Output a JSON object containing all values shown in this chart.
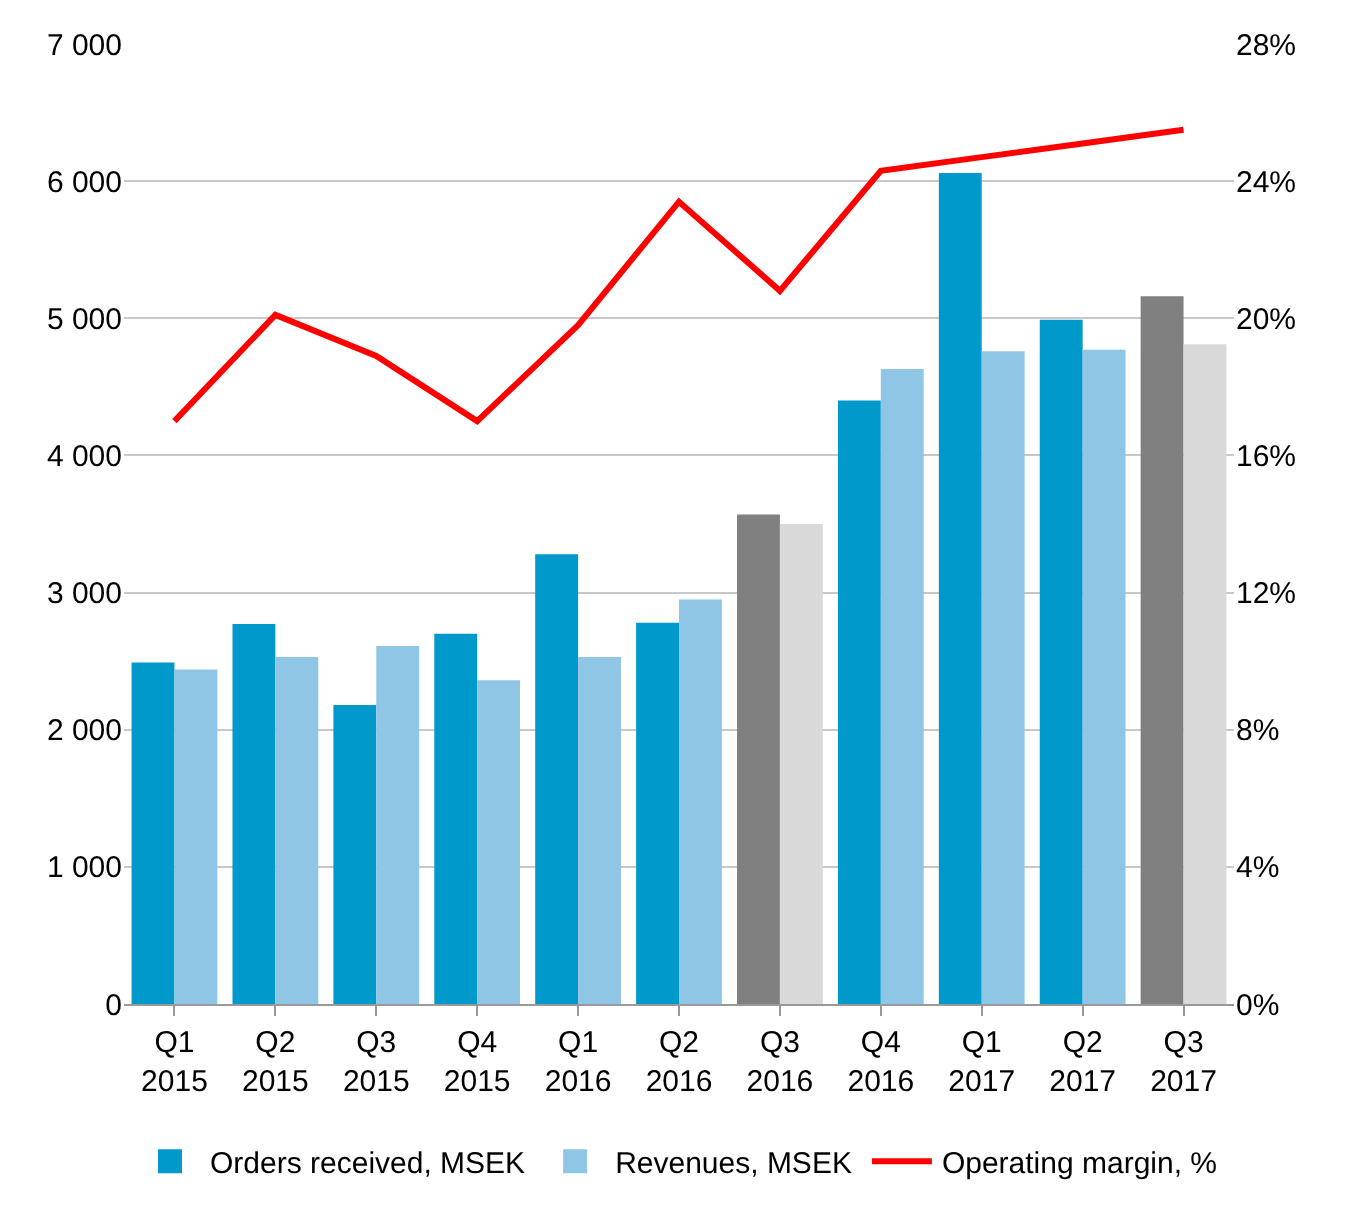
{
  "chart_data": {
    "type": "bar",
    "categories": [
      "Q1\n2015",
      "Q2\n2015",
      "Q3\n2015",
      "Q4\n2015",
      "Q1\n2016",
      "Q2\n2016",
      "Q3\n2016",
      "Q4\n2016",
      "Q1\n2017",
      "Q2\n2017",
      "Q3\n2017"
    ],
    "series": [
      {
        "name": "Orders received, MSEK",
        "color": "#0099cc",
        "colors": [
          "#0099cc",
          "#0099cc",
          "#0099cc",
          "#0099cc",
          "#0099cc",
          "#0099cc",
          "#808080",
          "#0099cc",
          "#0099cc",
          "#0099cc",
          "#808080"
        ],
        "values": [
          2490,
          2770,
          2180,
          2700,
          3280,
          2780,
          3570,
          4400,
          6060,
          4990,
          5160
        ]
      },
      {
        "name": "Revenues, MSEK",
        "color": "#8fc6e6",
        "colors": [
          "#8fc6e6",
          "#8fc6e6",
          "#8fc6e6",
          "#8fc6e6",
          "#8fc6e6",
          "#8fc6e6",
          "#d9d9d9",
          "#8fc6e6",
          "#8fc6e6",
          "#8fc6e6",
          "#d9d9d9"
        ],
        "values": [
          2440,
          2530,
          2610,
          2360,
          2530,
          2950,
          3500,
          4630,
          4760,
          4770,
          4810
        ]
      },
      {
        "name": "Operating margin, %",
        "type": "line",
        "axis": "y2",
        "color": "#ff0000",
        "values": [
          17.0,
          20.1,
          18.9,
          17.0,
          19.8,
          23.4,
          20.8,
          24.3,
          24.7,
          25.1,
          25.5
        ]
      }
    ],
    "ylim": [
      0,
      7000
    ],
    "yticks": [
      {
        "value": 0,
        "label": "0"
      },
      {
        "value": 1000,
        "label": "1 000"
      },
      {
        "value": 2000,
        "label": "2 000"
      },
      {
        "value": 3000,
        "label": "3 000"
      },
      {
        "value": 4000,
        "label": "4 000"
      },
      {
        "value": 5000,
        "label": "5 000"
      },
      {
        "value": 6000,
        "label": "6 000"
      },
      {
        "value": 7000,
        "label": "7 000"
      }
    ],
    "y2lim": [
      0,
      28
    ],
    "y2ticks": [
      {
        "value": 0,
        "label": "0%"
      },
      {
        "value": 4,
        "label": "4%"
      },
      {
        "value": 8,
        "label": "8%"
      },
      {
        "value": 12,
        "label": "12%"
      },
      {
        "value": 16,
        "label": "16%"
      },
      {
        "value": 20,
        "label": "20%"
      },
      {
        "value": 24,
        "label": "24%"
      },
      {
        "value": 28,
        "label": "28%"
      }
    ],
    "grid": "y",
    "legend": "bottom",
    "marker": "none",
    "line_style": "solid"
  }
}
